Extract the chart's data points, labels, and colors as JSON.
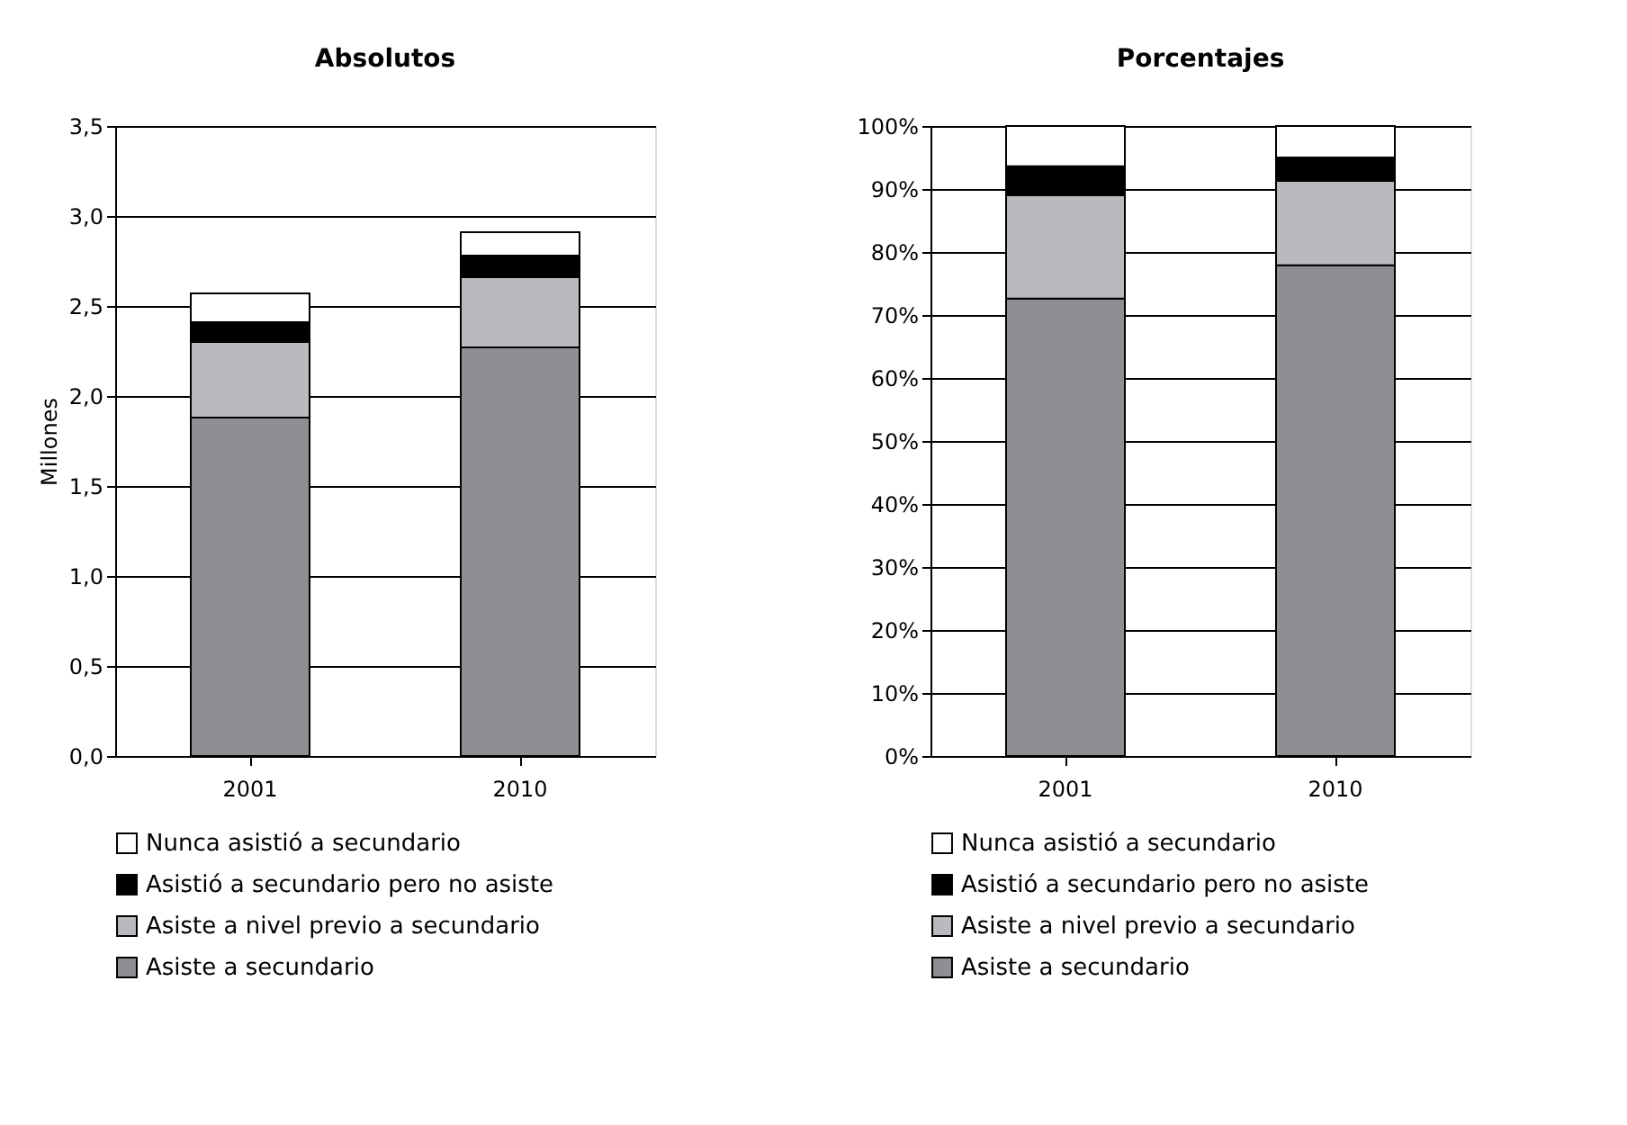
{
  "chart_data": [
    {
      "type": "bar",
      "stacked": true,
      "title": "Absolutos",
      "ylabel": "Millones",
      "categories": [
        "2001",
        "2010"
      ],
      "ylim": [
        0,
        3.5
      ],
      "yticks": [
        {
          "value": 0,
          "label": "0,0"
        },
        {
          "value": 0.5,
          "label": "0,5"
        },
        {
          "value": 1,
          "label": "1,0"
        },
        {
          "value": 1.5,
          "label": "1,5"
        },
        {
          "value": 2,
          "label": "2,0"
        },
        {
          "value": 2.5,
          "label": "2,5"
        },
        {
          "value": 3,
          "label": "3,0"
        },
        {
          "value": 3.5,
          "label": "3,5"
        }
      ],
      "grid": "y",
      "legend": "bottom",
      "series": [
        {
          "name": "Asiste a secundario",
          "color": "#8e8f93",
          "values": [
            1.88,
            2.27
          ]
        },
        {
          "name": "Asiste a nivel previo a secundario",
          "color": "#b9babd",
          "values": [
            0.42,
            0.39
          ]
        },
        {
          "name": "Asistió a secundario pero no asiste",
          "color": "#000000",
          "values": [
            0.11,
            0.12
          ]
        },
        {
          "name": "Nunca asistió a secundario",
          "color": "#ffffff",
          "values": [
            0.16,
            0.13
          ]
        }
      ]
    },
    {
      "type": "bar",
      "stacked": true,
      "title": "Porcentajes",
      "categories": [
        "2001",
        "2010"
      ],
      "ylim": [
        0,
        100
      ],
      "yticks": [
        {
          "value": 0,
          "label": "0%"
        },
        {
          "value": 10,
          "label": "10%"
        },
        {
          "value": 20,
          "label": "20%"
        },
        {
          "value": 30,
          "label": "30%"
        },
        {
          "value": 40,
          "label": "40%"
        },
        {
          "value": 50,
          "label": "50%"
        },
        {
          "value": 60,
          "label": "60%"
        },
        {
          "value": 70,
          "label": "70%"
        },
        {
          "value": 80,
          "label": "80%"
        },
        {
          "value": 90,
          "label": "90%"
        },
        {
          "value": 100,
          "label": "100%"
        }
      ],
      "grid": "y",
      "legend": "bottom",
      "series": [
        {
          "name": "Asiste a secundario",
          "color": "#8e8f93",
          "values": [
            72.6,
            77.9
          ]
        },
        {
          "name": "Asiste a nivel previo a secundario",
          "color": "#b9babd",
          "values": [
            16.4,
            13.4
          ]
        },
        {
          "name": "Asistió a secundario pero no asiste",
          "color": "#000000",
          "values": [
            4.6,
            3.7
          ]
        },
        {
          "name": "Nunca asistió a secundario",
          "color": "#ffffff",
          "values": [
            6.4,
            5.0
          ]
        }
      ]
    }
  ]
}
